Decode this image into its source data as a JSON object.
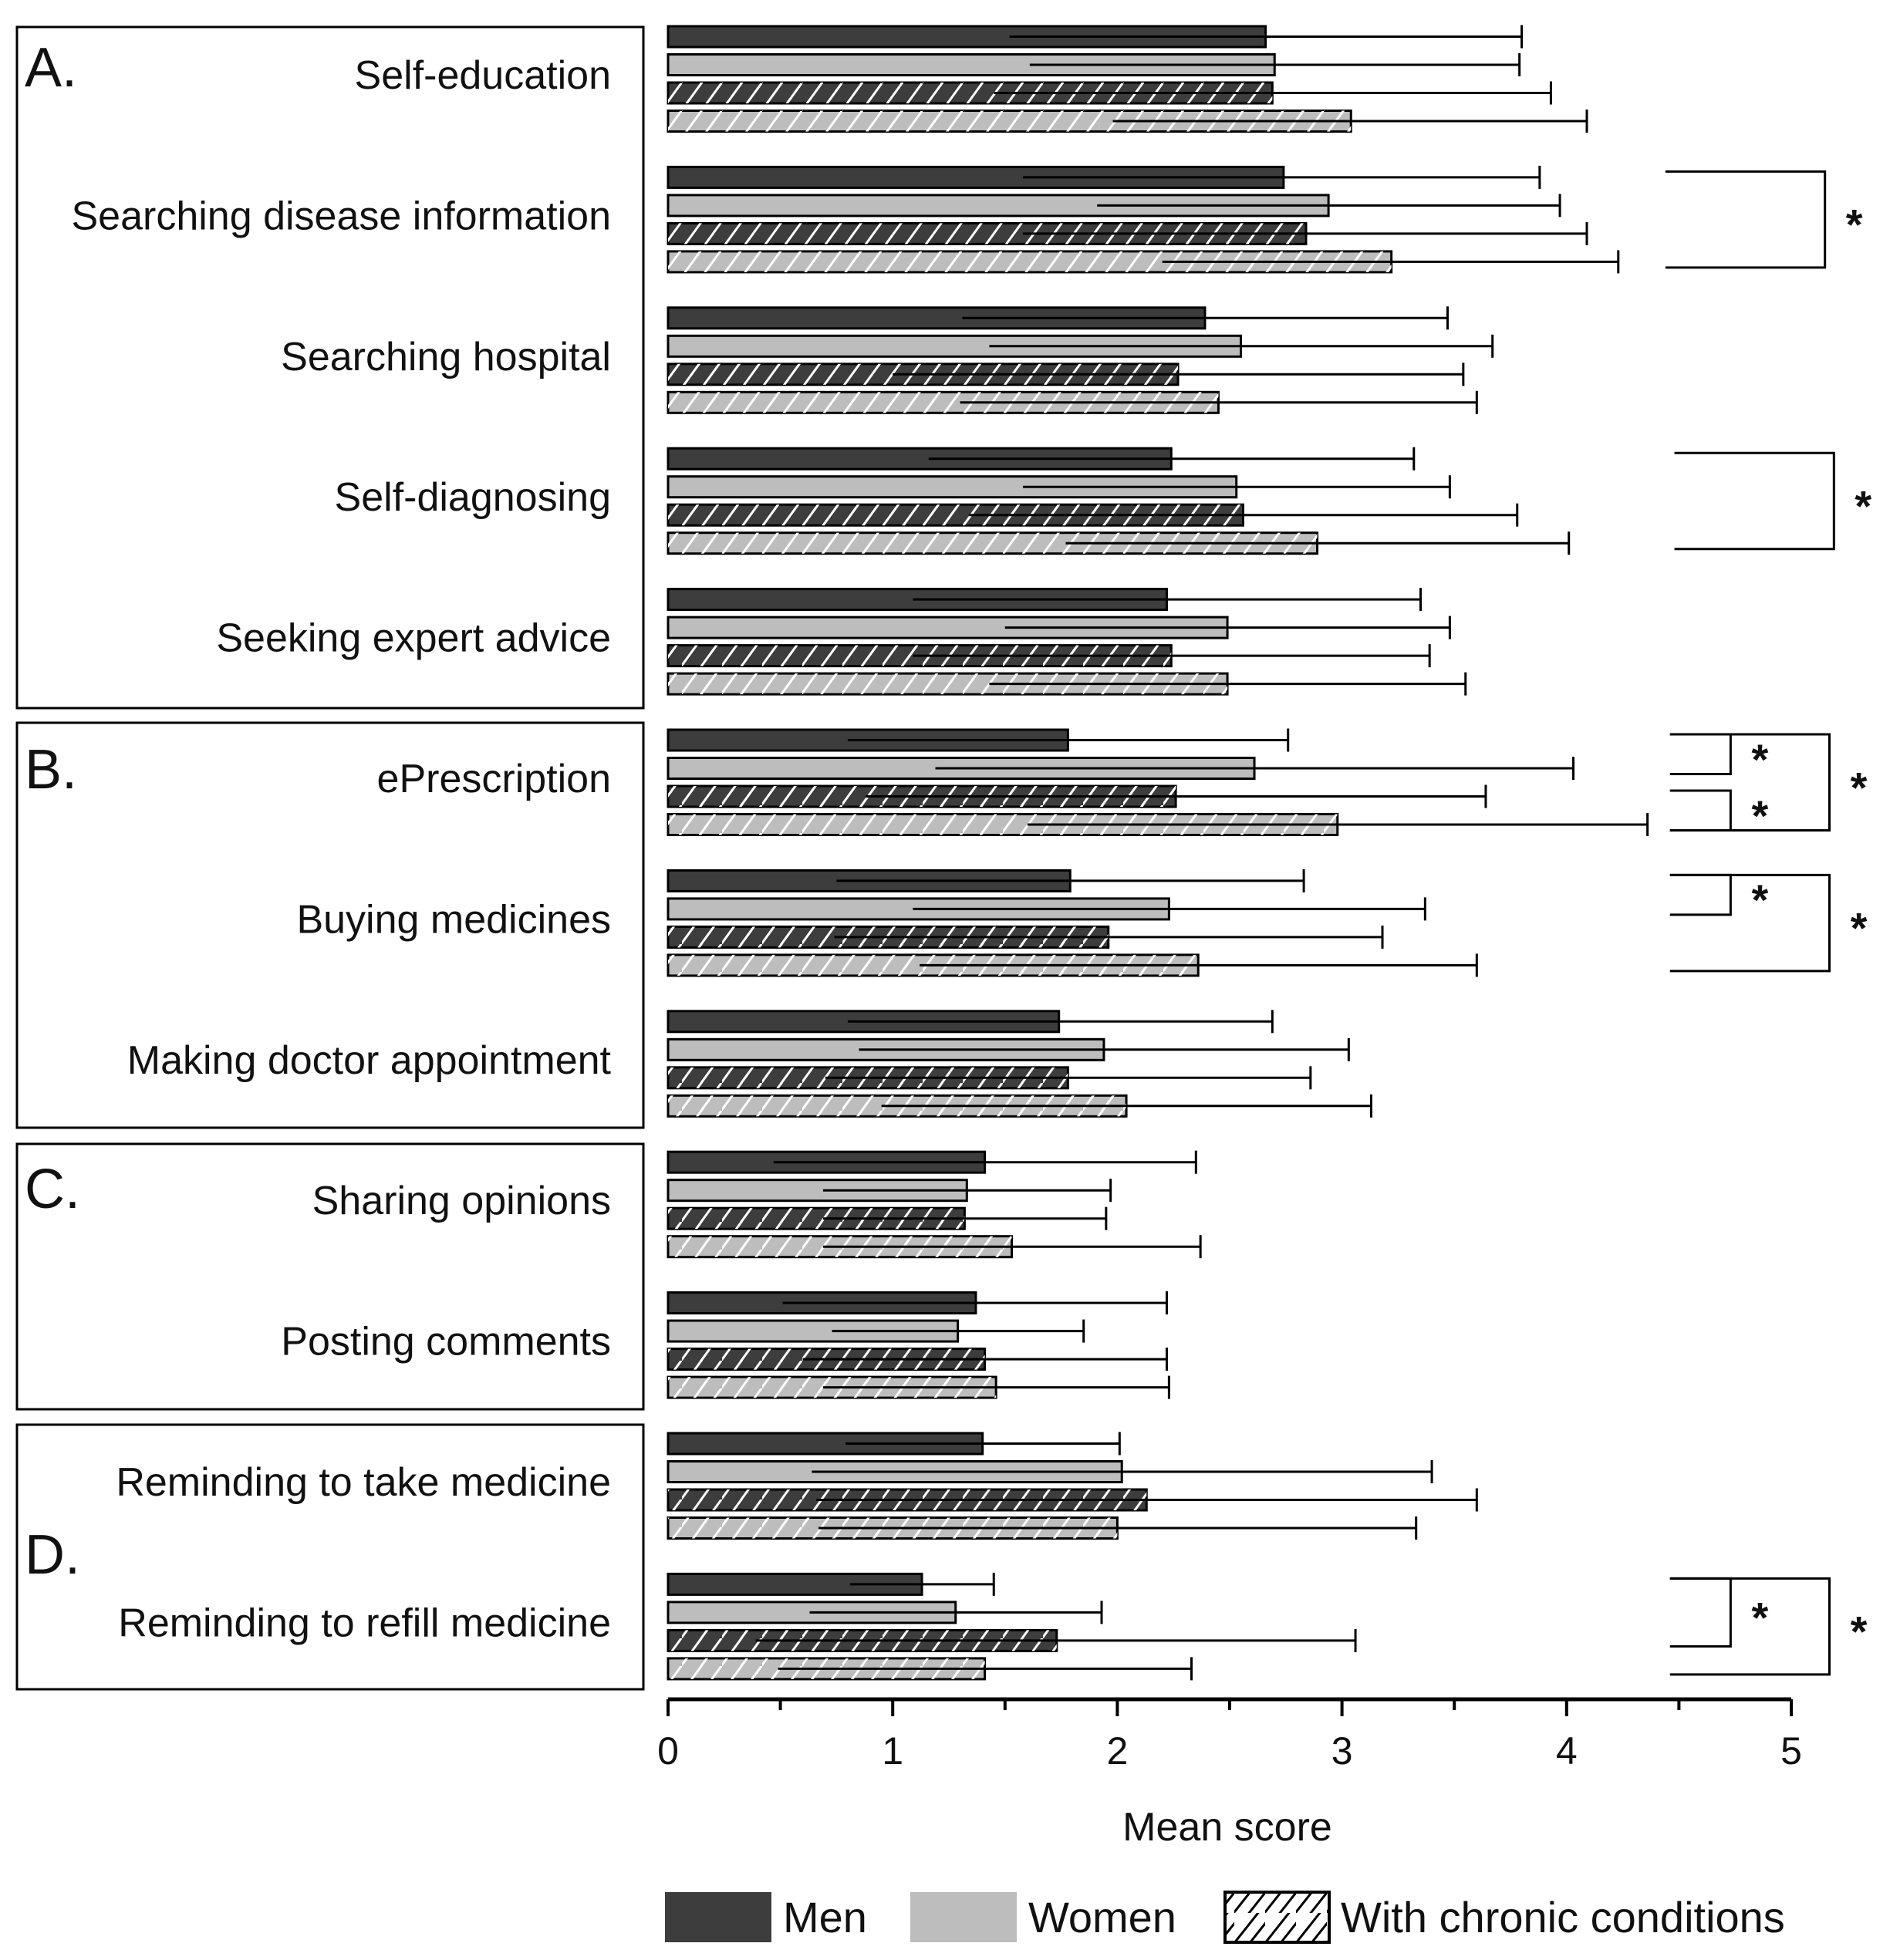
{
  "chart_data": {
    "type": "bar",
    "orientation": "horizontal",
    "xlabel": "Mean score",
    "xlim": [
      0,
      5
    ],
    "x_ticks": [
      "0",
      "1",
      "2",
      "3",
      "4",
      "5"
    ],
    "colors": {
      "men": "#3d3d3d",
      "women": "#bdbdbd",
      "hatch": "#ffffff",
      "stroke": "#000000"
    },
    "legend": {
      "men": "Men",
      "women": "Women",
      "chronic": "With chronic conditions"
    },
    "series": [
      {
        "key": "men",
        "name": "Men",
        "color": "#3d3d3d",
        "hatched": false
      },
      {
        "key": "women",
        "name": "Women",
        "color": "#bdbdbd",
        "hatched": false
      },
      {
        "key": "men_chronic",
        "name": "Men with chronic conditions",
        "color": "#3d3d3d",
        "hatched": true
      },
      {
        "key": "women_chronic",
        "name": "Women with chronic conditions",
        "color": "#bdbdbd",
        "hatched": true
      }
    ],
    "groups": [
      {
        "label": "A.",
        "categories": [
          "Self-education",
          "Searching disease information",
          "Searching hospital",
          "Self-diagnosing",
          "Seeking expert advice"
        ]
      },
      {
        "label": "B.",
        "categories": [
          "ePrescription",
          "Buying medicines",
          "Making doctor appointment"
        ]
      },
      {
        "label": "C.",
        "categories": [
          "Sharing opinions",
          "Posting comments"
        ]
      },
      {
        "label": "D.",
        "categories": [
          "Reminding to take medicine",
          "Reminding to refill medicine"
        ]
      }
    ],
    "categories": [
      "Self-education",
      "Searching disease information",
      "Searching hospital",
      "Self-diagnosing",
      "Seeking expert advice",
      "ePrescription",
      "Buying medicines",
      "Making doctor appointment",
      "Sharing opinions",
      "Posting comments",
      "Reminding to take medicine",
      "Reminding to refill medicine"
    ],
    "values": [
      [
        2.66,
        2.7,
        2.69,
        3.04
      ],
      [
        2.74,
        2.94,
        2.84,
        3.22
      ],
      [
        2.39,
        2.55,
        2.27,
        2.45
      ],
      [
        2.24,
        2.53,
        2.56,
        2.89
      ],
      [
        2.22,
        2.49,
        2.24,
        2.49
      ],
      [
        1.78,
        2.61,
        2.26,
        2.98
      ],
      [
        1.79,
        2.23,
        1.96,
        2.36
      ],
      [
        1.74,
        1.94,
        1.78,
        2.04
      ],
      [
        1.41,
        1.33,
        1.32,
        1.53
      ],
      [
        1.37,
        1.29,
        1.41,
        1.46
      ],
      [
        1.4,
        2.02,
        2.13,
        2.0
      ],
      [
        1.13,
        1.28,
        1.73,
        1.41
      ]
    ],
    "error_high": [
      [
        3.8,
        3.79,
        3.93,
        4.09
      ],
      [
        3.88,
        3.97,
        4.09,
        4.23
      ],
      [
        3.47,
        3.67,
        3.54,
        3.6
      ],
      [
        3.32,
        3.48,
        3.78,
        4.01
      ],
      [
        3.35,
        3.48,
        3.39,
        3.55
      ],
      [
        2.76,
        4.03,
        3.64,
        4.36
      ],
      [
        2.83,
        3.37,
        3.18,
        3.6
      ],
      [
        2.69,
        3.03,
        2.86,
        3.13
      ],
      [
        2.35,
        1.97,
        1.95,
        2.37
      ],
      [
        2.22,
        1.85,
        2.22,
        2.23
      ],
      [
        2.01,
        3.4,
        3.6,
        3.33
      ],
      [
        1.45,
        1.93,
        3.06,
        2.33
      ]
    ],
    "error_low": [
      [
        1.52,
        1.61,
        1.45,
        1.98
      ],
      [
        1.58,
        1.91,
        1.58,
        2.2
      ],
      [
        1.31,
        1.43,
        1.0,
        1.3
      ],
      [
        1.16,
        1.58,
        1.34,
        1.77
      ],
      [
        1.09,
        1.5,
        1.09,
        1.43
      ],
      [
        0.8,
        1.19,
        0.88,
        1.6
      ],
      [
        0.75,
        1.09,
        0.74,
        1.12
      ],
      [
        0.8,
        0.85,
        0.7,
        0.95
      ],
      [
        0.47,
        0.69,
        0.69,
        0.69
      ],
      [
        0.51,
        0.73,
        0.6,
        0.69
      ],
      [
        0.79,
        0.64,
        0.66,
        0.67
      ],
      [
        0.81,
        0.63,
        0.39,
        0.49
      ]
    ],
    "significance": [
      {
        "category": 1,
        "from_bar": 0,
        "to_bar": 3,
        "x_start": 4.44,
        "x_end": 5.15,
        "label": "*"
      },
      {
        "category": 3,
        "from_bar": 0,
        "to_bar": 3,
        "x_start": 4.48,
        "x_end": 5.19,
        "label": "*"
      },
      {
        "category": 5,
        "from_bar": 0,
        "to_bar": 3,
        "x_start": 4.46,
        "x_end": 5.17,
        "label": "*"
      },
      {
        "category": 5,
        "from_bar": 0,
        "to_bar": 1,
        "x_start": 4.46,
        "x_end": 4.73,
        "label": "*"
      },
      {
        "category": 5,
        "from_bar": 2,
        "to_bar": 3,
        "x_start": 4.46,
        "x_end": 4.73,
        "label": "*"
      },
      {
        "category": 6,
        "from_bar": 0,
        "to_bar": 3,
        "x_start": 4.46,
        "x_end": 5.17,
        "label": "*"
      },
      {
        "category": 6,
        "from_bar": 0,
        "to_bar": 1,
        "x_start": 4.46,
        "x_end": 4.73,
        "label": "*"
      },
      {
        "category": 11,
        "from_bar": 0,
        "to_bar": 3,
        "x_start": 4.46,
        "x_end": 5.17,
        "label": "*"
      },
      {
        "category": 11,
        "from_bar": 0,
        "to_bar": 2,
        "x_start": 4.46,
        "x_end": 4.73,
        "label": "*"
      }
    ]
  }
}
